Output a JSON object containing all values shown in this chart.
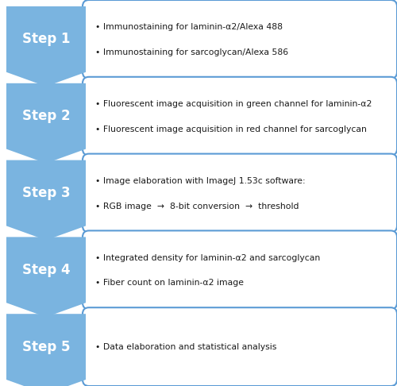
{
  "steps": [
    {
      "label": "Step 1",
      "bullets": [
        "• Immunostaining for laminin-α2/Alexa 488",
        "• Immunostaining for sarcoglycan/Alexa 586"
      ]
    },
    {
      "label": "Step 2",
      "bullets": [
        "• Fluorescent image acquisition in green channel for laminin-α2",
        "• Fluorescent image acquisition in red channel for sarcoglycan"
      ]
    },
    {
      "label": "Step 3",
      "bullets": [
        "• Image elaboration with ImageJ 1.53c software:",
        "• RGB image  →  8-bit conversion  →  threshold"
      ]
    },
    {
      "label": "Step 4",
      "bullets": [
        "• Integrated density for laminin-α2 and sarcoglycan",
        "• Fiber count on laminin-α2 image"
      ]
    },
    {
      "label": "Step 5",
      "bullets": [
        "• Data elaboration and statistical analysis"
      ]
    }
  ],
  "step_color_top": "#7ab4e0",
  "step_color_bot": "#4a8ec2",
  "step_text_color": "#ffffff",
  "box_edge_color": "#5b9bd5",
  "box_fill_color": "#ffffff",
  "background_color": "#ffffff",
  "bullet_text_color": "#1a1a1a",
  "fig_width": 5.0,
  "fig_height": 4.86,
  "dpi": 100
}
